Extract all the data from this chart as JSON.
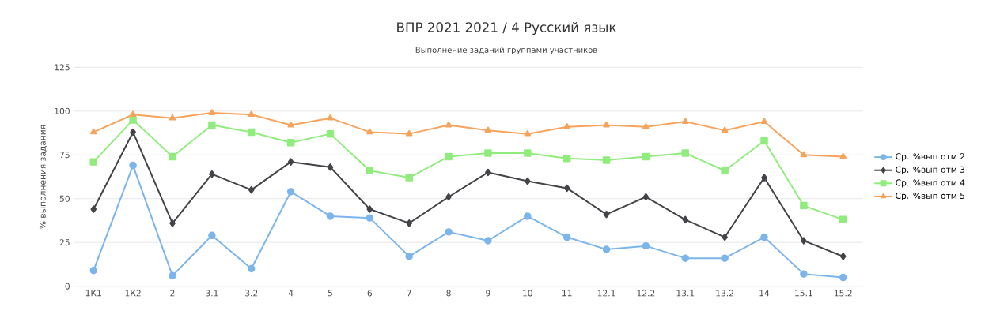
{
  "chart_data": {
    "type": "line",
    "title": "ВПР 2021 2021 / 4 Русский язык",
    "subtitle": "Выполнение заданий группами участников",
    "ylabel": "% выполнения задания",
    "categories": [
      "1К1",
      "1К2",
      "2",
      "3.1",
      "3.2",
      "4",
      "5",
      "6",
      "7",
      "8",
      "9",
      "10",
      "11",
      "12.1",
      "12.2",
      "13.1",
      "13.2",
      "14",
      "15.1",
      "15.2"
    ],
    "series": [
      {
        "name": "Ср. %вып отм 2",
        "color": "#7cb5ec",
        "marker": "circle",
        "values": [
          9,
          69,
          6,
          29,
          10,
          54,
          40,
          39,
          17,
          31,
          26,
          40,
          28,
          21,
          23,
          16,
          16,
          28,
          7,
          5
        ]
      },
      {
        "name": "Ср. %вып отм 3",
        "color": "#434348",
        "marker": "diamond",
        "values": [
          44,
          88,
          36,
          64,
          55,
          71,
          68,
          44,
          36,
          51,
          65,
          60,
          56,
          41,
          51,
          38,
          28,
          62,
          26,
          17
        ]
      },
      {
        "name": "Ср. %вып отм 4",
        "color": "#90ed7d",
        "marker": "square",
        "values": [
          71,
          95,
          74,
          92,
          88,
          82,
          87,
          66,
          62,
          74,
          76,
          76,
          73,
          72,
          74,
          76,
          66,
          83,
          46,
          38
        ]
      },
      {
        "name": "Ср. %вып отм 5",
        "color": "#f7a35c",
        "marker": "triangle",
        "values": [
          88,
          98,
          96,
          99,
          98,
          92,
          96,
          88,
          87,
          92,
          89,
          87,
          91,
          92,
          91,
          94,
          89,
          94,
          75,
          74
        ]
      }
    ],
    "ylim": [
      0,
      125
    ],
    "yticks": [
      0,
      25,
      50,
      75,
      100,
      125
    ],
    "grid": "y",
    "legend": "right"
  }
}
